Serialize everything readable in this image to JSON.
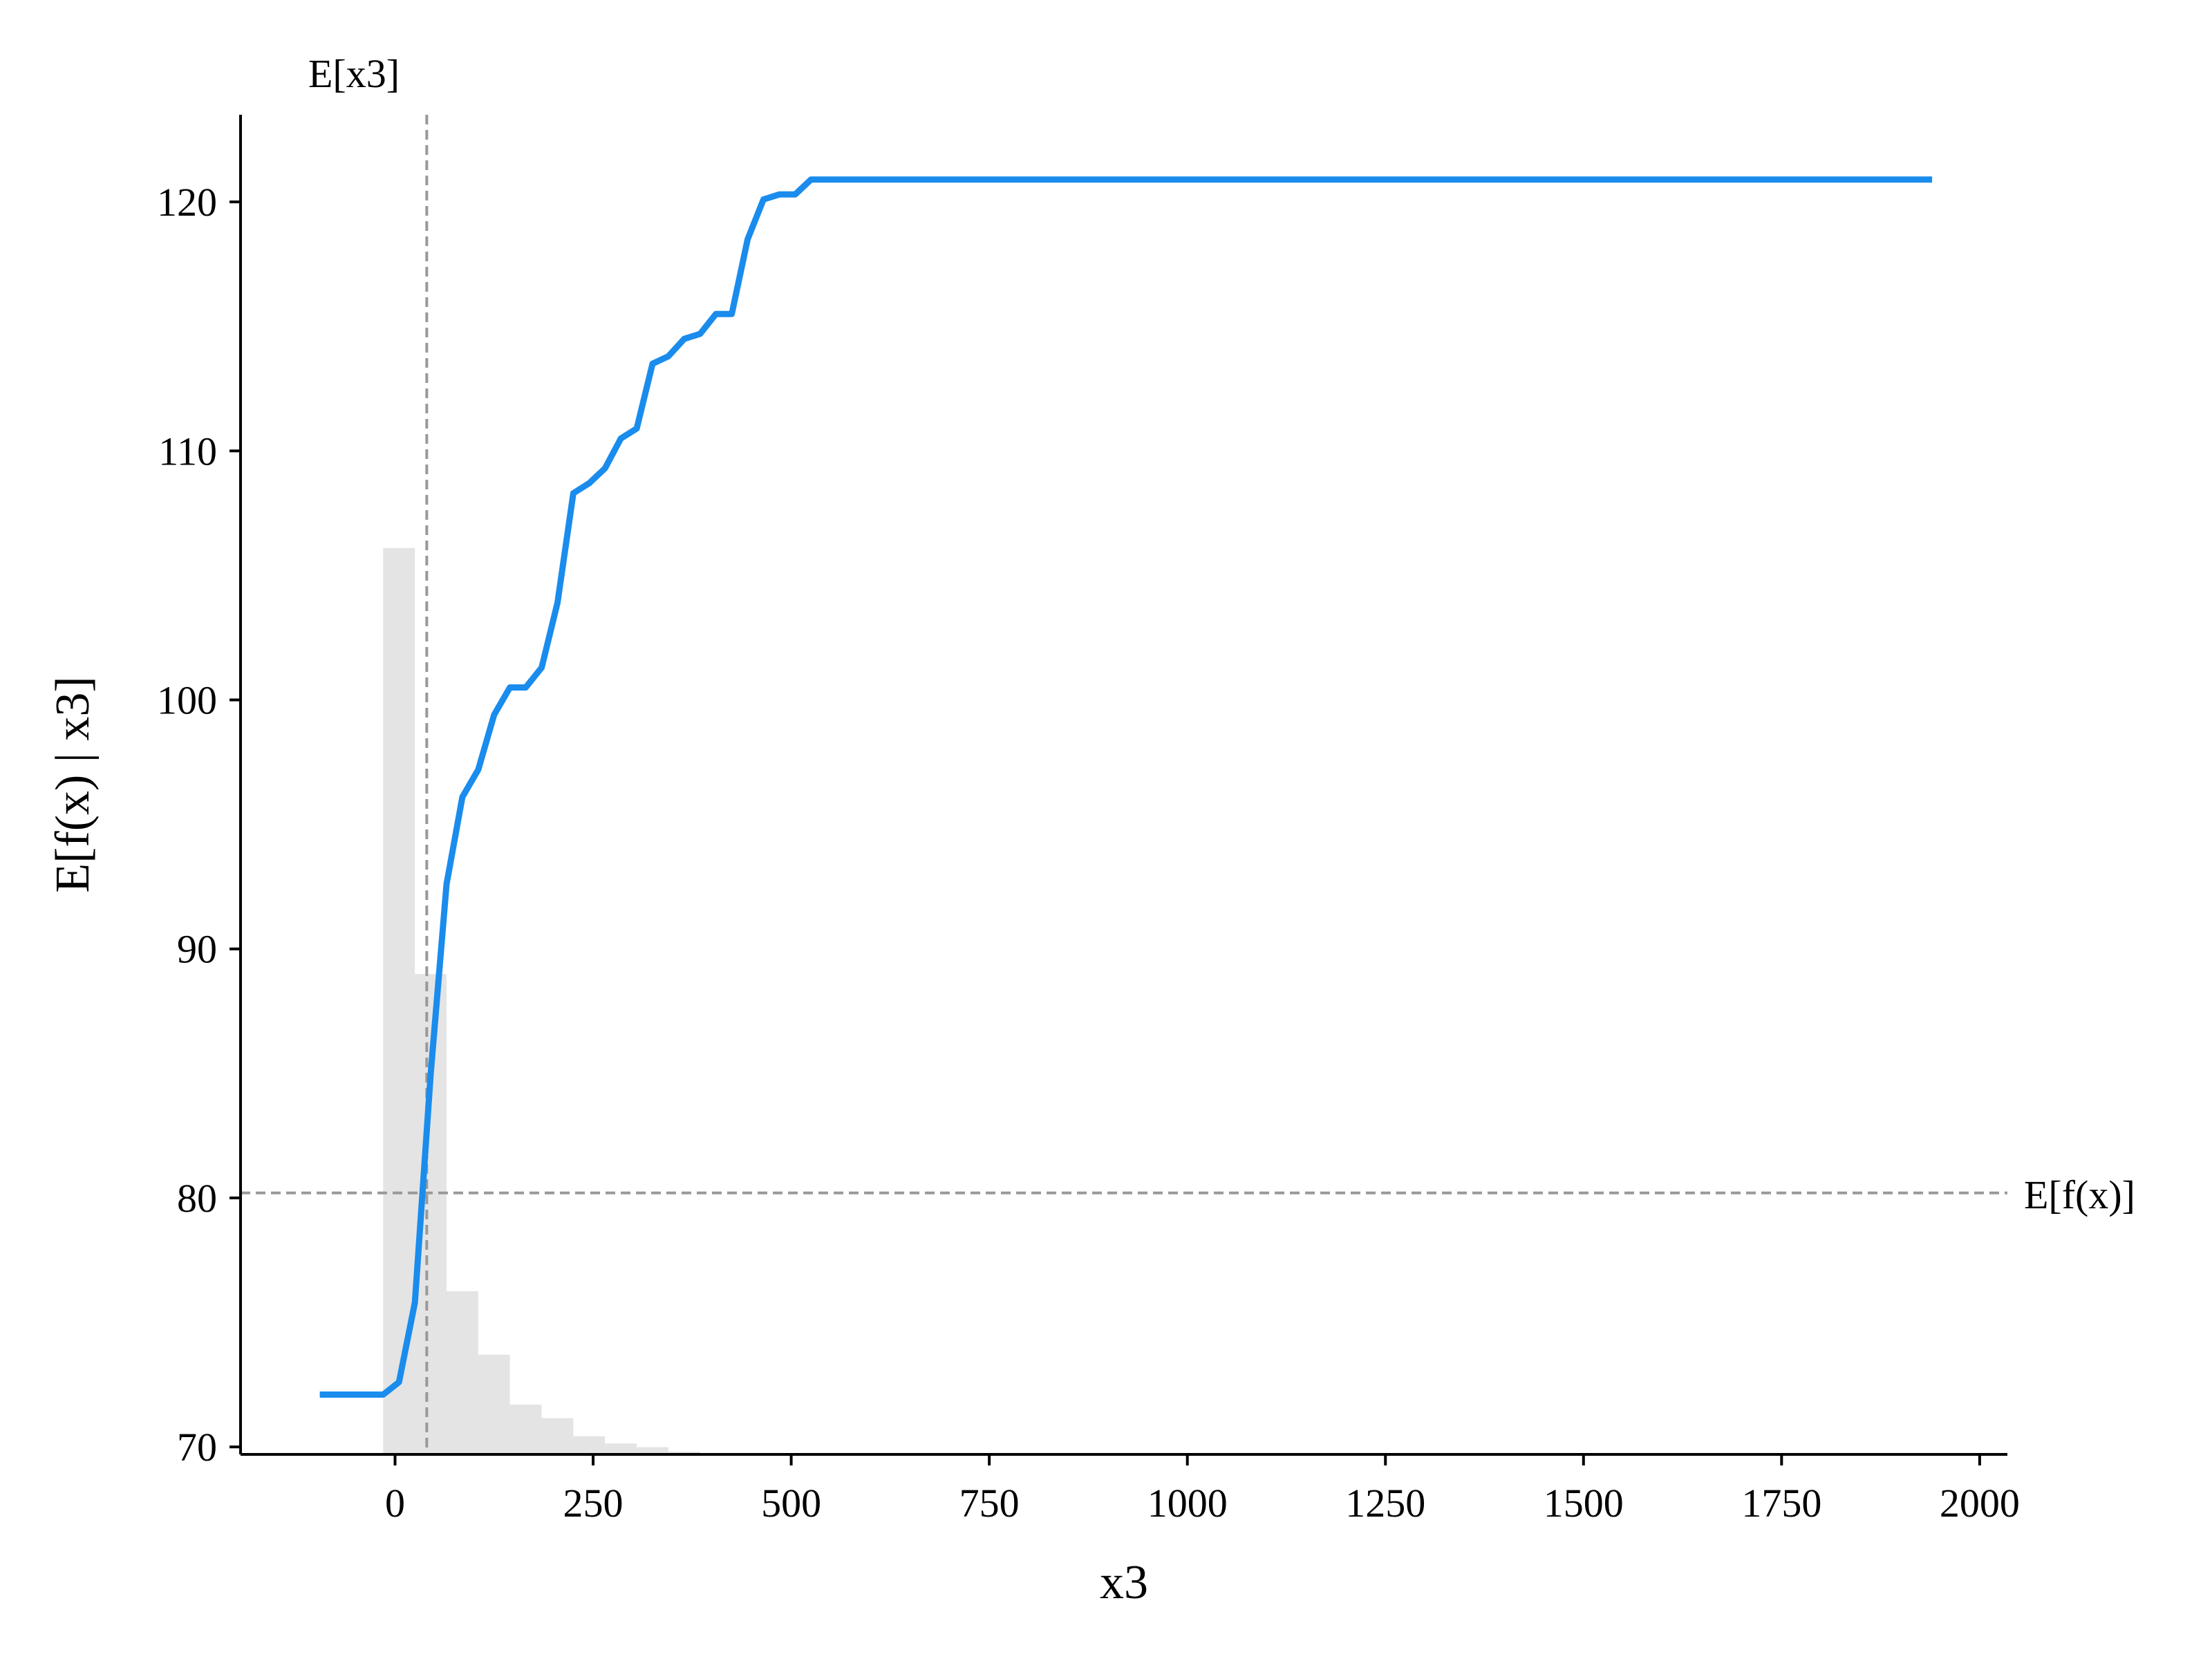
{
  "chart_data": {
    "type": "line",
    "title": "",
    "xlabel": "x3",
    "ylabel": "E[f(x) | x3]",
    "xlim": [
      -195,
      2035
    ],
    "ylim": [
      69.7,
      123.5
    ],
    "xticks": [
      0,
      250,
      500,
      750,
      1000,
      1250,
      1500,
      1750,
      2000
    ],
    "yticks": [
      70,
      80,
      90,
      100,
      110,
      120
    ],
    "grid": false,
    "colors": {
      "line": "#1a8ced",
      "reference": "#999999",
      "histogram": "#e4e4e4"
    },
    "reference_lines": {
      "vertical": {
        "label": "E[x3]",
        "x": 40
      },
      "horizontal": {
        "label": "E[f(x)]",
        "y": 80.2
      }
    },
    "series": [
      {
        "x": [
          -95,
          -15,
          5,
          25,
          45,
          65,
          85,
          105,
          125,
          145,
          165,
          185,
          205,
          225,
          245,
          265,
          285,
          305,
          325,
          345,
          365,
          385,
          405,
          425,
          445,
          465,
          485,
          505,
          525,
          545,
          1940
        ],
        "y": [
          72.1,
          72.1,
          72.6,
          75.8,
          85.0,
          92.6,
          96.1,
          97.2,
          99.4,
          100.5,
          100.5,
          101.3,
          103.9,
          108.3,
          108.7,
          109.3,
          110.5,
          110.9,
          113.5,
          113.8,
          114.5,
          114.7,
          115.5,
          115.5,
          118.5,
          120.1,
          120.3,
          120.3,
          120.9,
          120.9,
          120.9
        ]
      }
    ],
    "histogram": {
      "bin_edges": [
        -15,
        25,
        65,
        105,
        145,
        185,
        225,
        265,
        305,
        345,
        385
      ],
      "relative_heights": [
        1.0,
        0.53,
        0.18,
        0.11,
        0.055,
        0.04,
        0.02,
        0.012,
        0.008,
        0.003
      ]
    }
  }
}
